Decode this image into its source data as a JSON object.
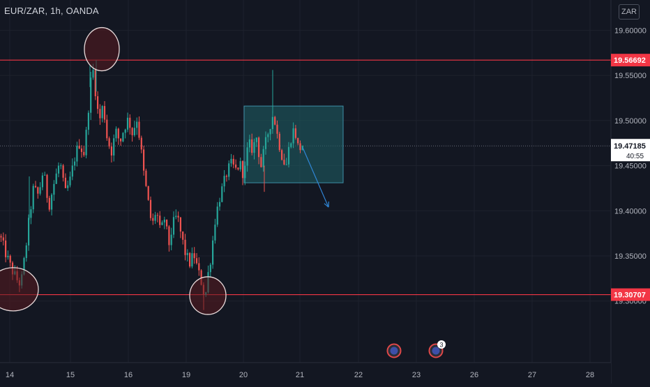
{
  "header": {
    "symbol_line": "EUR/ZAR, 1h, OANDA",
    "currency": "ZAR"
  },
  "colors": {
    "background": "#131722",
    "grid": "#1e222d",
    "text": "#b2b5be",
    "up": "#26a69a",
    "down": "#ef5350",
    "level_line": "#f23645",
    "box_fill": "#1d5a60",
    "box_border": "#3d8fa8",
    "arrow": "#2f86d6",
    "circle_fill": "#5a1a1f",
    "circle_stroke": "#e8dada"
  },
  "chart_data": {
    "type": "candlestick",
    "symbol": "EUR/ZAR",
    "timeframe": "1h",
    "source": "OANDA",
    "x_tick_labels": [
      "14",
      "15",
      "16",
      "19",
      "20",
      "21",
      "22",
      "23",
      "26",
      "27",
      "28"
    ],
    "y_tick_labels": [
      "19.60000",
      "19.55000",
      "19.50000",
      "19.45000",
      "19.40000",
      "19.35000",
      "19.30000"
    ],
    "ylim": [
      19.282,
      19.608
    ],
    "horizontal_levels": [
      {
        "label": "19.56692",
        "value": 19.56692
      },
      {
        "label": "19.30707",
        "value": 19.30707
      }
    ],
    "last_price": {
      "label": "19.47185",
      "value": 19.47185,
      "countdown": "40:55"
    },
    "price_path": [
      [
        0,
        19.372
      ],
      [
        8,
        19.353
      ],
      [
        16,
        19.336
      ],
      [
        24,
        19.324
      ],
      [
        30,
        19.318
      ],
      [
        36,
        19.352
      ],
      [
        42,
        19.392
      ],
      [
        48,
        19.425
      ],
      [
        55,
        19.417
      ],
      [
        62,
        19.445
      ],
      [
        70,
        19.405
      ],
      [
        78,
        19.432
      ],
      [
        86,
        19.455
      ],
      [
        93,
        19.418
      ],
      [
        100,
        19.432
      ],
      [
        108,
        19.462
      ],
      [
        114,
        19.475
      ],
      [
        120,
        19.462
      ],
      [
        125,
        19.495
      ],
      [
        129,
        19.537
      ],
      [
        133,
        19.558
      ],
      [
        137,
        19.532
      ],
      [
        142,
        19.498
      ],
      [
        148,
        19.518
      ],
      [
        154,
        19.478
      ],
      [
        160,
        19.466
      ],
      [
        166,
        19.488
      ],
      [
        172,
        19.476
      ],
      [
        178,
        19.492
      ],
      [
        184,
        19.502
      ],
      [
        190,
        19.485
      ],
      [
        196,
        19.503
      ],
      [
        201,
        19.476
      ],
      [
        206,
        19.442
      ],
      [
        212,
        19.412
      ],
      [
        218,
        19.382
      ],
      [
        224,
        19.402
      ],
      [
        230,
        19.375
      ],
      [
        236,
        19.392
      ],
      [
        242,
        19.362
      ],
      [
        248,
        19.385
      ],
      [
        254,
        19.395
      ],
      [
        260,
        19.372
      ],
      [
        266,
        19.352
      ],
      [
        272,
        19.342
      ],
      [
        278,
        19.352
      ],
      [
        284,
        19.333
      ],
      [
        290,
        19.318
      ],
      [
        294,
        19.302
      ],
      [
        298,
        19.328
      ],
      [
        303,
        19.352
      ],
      [
        308,
        19.388
      ],
      [
        314,
        19.412
      ],
      [
        320,
        19.428
      ],
      [
        326,
        19.444
      ],
      [
        332,
        19.452
      ],
      [
        338,
        19.445
      ],
      [
        344,
        19.452
      ],
      [
        350,
        19.438
      ],
      [
        356,
        19.475
      ],
      [
        362,
        19.468
      ],
      [
        368,
        19.482
      ],
      [
        374,
        19.448
      ],
      [
        380,
        19.472
      ],
      [
        386,
        19.492
      ],
      [
        392,
        19.508
      ],
      [
        398,
        19.482
      ],
      [
        404,
        19.462
      ],
      [
        410,
        19.448
      ],
      [
        416,
        19.478
      ],
      [
        422,
        19.492
      ],
      [
        428,
        19.468
      ],
      [
        434,
        19.472
      ]
    ],
    "annotations": {
      "rectangle": {
        "t0": 350,
        "t1": 492,
        "top": 19.516,
        "bottom": 19.431
      },
      "arrow": {
        "from": [
          434,
          19.47
        ],
        "to": [
          471,
          19.404
        ]
      },
      "circles": [
        {
          "cx": 146,
          "cy": 19.579,
          "rx": 25,
          "ry": 31
        },
        {
          "cx": 19,
          "cy": 19.313,
          "rx": 36,
          "ry": 31
        },
        {
          "cx": 298,
          "cy": 19.306,
          "rx": 26,
          "ry": 27
        }
      ],
      "event_markers": [
        {
          "t": 565,
          "badge": ""
        },
        {
          "t": 625,
          "badge": "3"
        }
      ]
    }
  }
}
